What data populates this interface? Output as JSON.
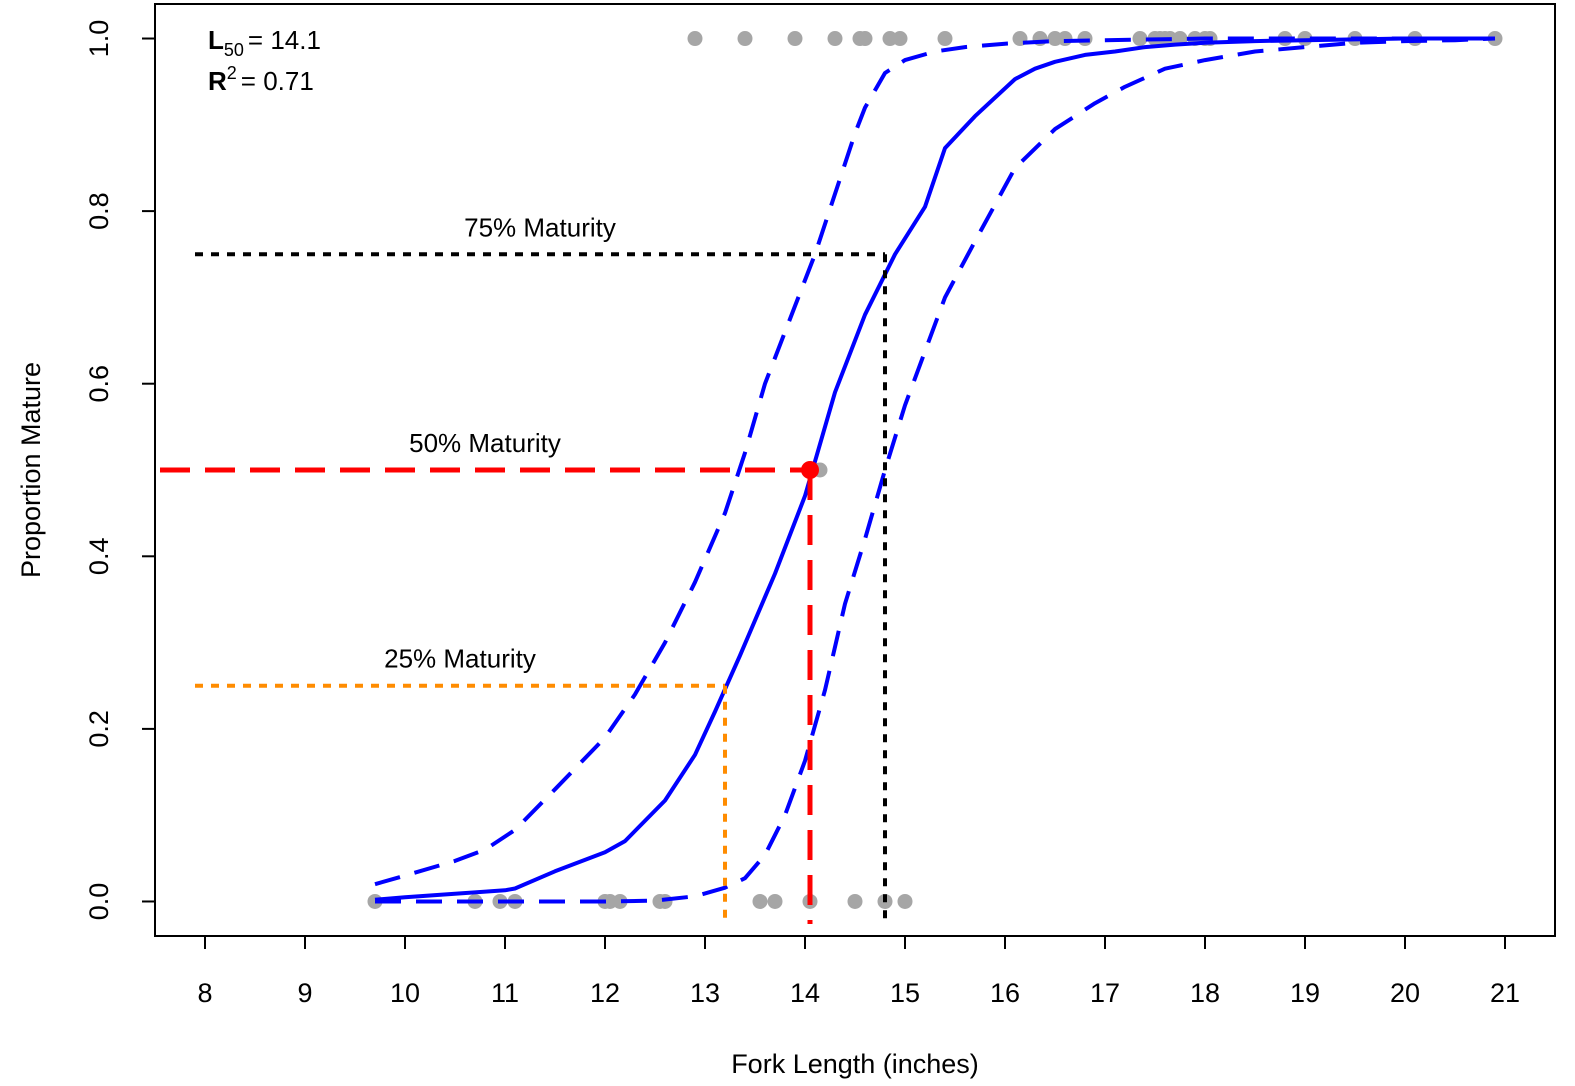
{
  "chart_data": {
    "type": "scatter",
    "xlabel": "Fork Length (inches)",
    "ylabel": "Proportion Mature",
    "xlim": [
      7.5,
      21.5
    ],
    "ylim": [
      -0.04,
      1.04
    ],
    "x_ticks": [
      8,
      9,
      10,
      11,
      12,
      13,
      14,
      15,
      16,
      17,
      18,
      19,
      20,
      21
    ],
    "y_ticks": [
      0.0,
      0.2,
      0.4,
      0.6,
      0.8,
      1.0
    ],
    "x_tick_labels": [
      "8",
      "9",
      "10",
      "11",
      "12",
      "13",
      "14",
      "15",
      "16",
      "17",
      "18",
      "19",
      "20",
      "21"
    ],
    "y_tick_labels": [
      "0.0",
      "0.2",
      "0.4",
      "0.6",
      "0.8",
      "1.0"
    ],
    "stats": {
      "l50_symbol": "L",
      "l50_sub": "50",
      "l50_value": "= 14.1",
      "r2_symbol": "R",
      "r2_sup": "2",
      "r2_value": "= 0.71"
    },
    "colors": {
      "fit": "#0000ff",
      "points": "#a6a6a6",
      "m25": "#ff8c00",
      "m50": "#ff0000",
      "m75": "#000000"
    },
    "observations_immature_x": [
      9.7,
      10.7,
      10.95,
      11.1,
      12.0,
      12.05,
      12.15,
      12.55,
      12.6,
      13.55,
      13.7,
      14.05,
      14.5,
      14.8,
      15.0
    ],
    "observations_mature_x": [
      12.9,
      13.4,
      13.9,
      14.3,
      14.55,
      14.6,
      14.85,
      14.95,
      15.4,
      16.15,
      16.35,
      16.5,
      16.6,
      16.8,
      17.35,
      17.5,
      17.55,
      17.6,
      17.65,
      17.75,
      17.9,
      18.0,
      18.05,
      18.8,
      19.0,
      19.5,
      20.1,
      20.9
    ],
    "observation_at_l50": {
      "x": 14.15,
      "y": 0.5
    },
    "series": [
      {
        "style": "solid",
        "x": [
          9.7,
          10.0,
          10.5,
          11.0,
          11.1,
          11.5,
          12.0,
          12.2,
          12.6,
          12.9,
          13.1,
          13.35,
          13.7,
          14.0,
          14.3,
          14.6,
          14.9,
          15.2,
          15.4,
          15.7,
          16.1,
          16.3,
          16.5,
          16.8,
          17.1,
          17.4,
          17.7,
          18.0,
          18.5,
          19.0,
          19.5,
          20.0,
          20.5,
          20.9
        ],
        "y": [
          0.002,
          0.005,
          0.009,
          0.013,
          0.015,
          0.035,
          0.057,
          0.07,
          0.117,
          0.17,
          0.22,
          0.285,
          0.38,
          0.47,
          0.59,
          0.68,
          0.75,
          0.805,
          0.873,
          0.91,
          0.953,
          0.965,
          0.973,
          0.981,
          0.985,
          0.99,
          0.993,
          0.995,
          0.997,
          0.998,
          0.999,
          1.0,
          1.0,
          1.0
        ]
      },
      {
        "style": "dashed",
        "x": [
          9.7,
          10.0,
          10.5,
          10.8,
          11.1,
          11.5,
          12.0,
          12.3,
          12.6,
          12.9,
          13.2,
          13.4,
          13.6,
          13.9,
          14.1,
          14.3,
          14.5,
          14.6,
          14.8,
          15.0,
          15.3,
          15.6,
          16.0,
          16.5,
          17.0,
          17.5,
          18.0,
          18.5,
          19.0,
          19.5,
          20.0,
          20.5,
          20.9
        ],
        "y": [
          0.02,
          0.03,
          0.047,
          0.06,
          0.083,
          0.13,
          0.19,
          0.24,
          0.3,
          0.37,
          0.45,
          0.52,
          0.6,
          0.69,
          0.75,
          0.82,
          0.89,
          0.92,
          0.96,
          0.975,
          0.985,
          0.99,
          0.994,
          0.997,
          0.998,
          0.999,
          1.0,
          1.0,
          1.0,
          1.0,
          1.0,
          1.0,
          1.0
        ]
      },
      {
        "style": "dashed",
        "x": [
          9.7,
          10.0,
          10.5,
          11.0,
          11.5,
          12.0,
          12.5,
          12.9,
          13.2,
          13.4,
          13.6,
          13.8,
          14.0,
          14.2,
          14.4,
          14.6,
          14.8,
          15.0,
          15.4,
          15.7,
          16.1,
          16.5,
          16.9,
          17.2,
          17.6,
          18.0,
          18.5,
          19.0,
          19.5,
          20.0,
          20.5,
          20.9
        ],
        "y": [
          0.0,
          0.0,
          0.0,
          0.0,
          0.0,
          0.0,
          0.001,
          0.006,
          0.016,
          0.027,
          0.054,
          0.1,
          0.163,
          0.245,
          0.345,
          0.42,
          0.5,
          0.575,
          0.7,
          0.765,
          0.85,
          0.895,
          0.925,
          0.944,
          0.965,
          0.975,
          0.985,
          0.99,
          0.995,
          0.997,
          0.998,
          1.0
        ]
      }
    ],
    "maturity_lines": [
      {
        "label": "25% Maturity",
        "p": 0.25,
        "length": 13.2,
        "style": "dotted",
        "color_key": "m25",
        "x_start": 7.9
      },
      {
        "label": "50% Maturity",
        "p": 0.5,
        "length": 14.05,
        "style": "dashed",
        "color_key": "m50",
        "x_start": 7.55
      },
      {
        "label": "75% Maturity",
        "p": 0.75,
        "length": 14.8,
        "style": "dotted",
        "color_key": "m75",
        "x_start": 7.9
      }
    ],
    "l50_point": {
      "x": 14.05,
      "y": 0.5
    }
  }
}
